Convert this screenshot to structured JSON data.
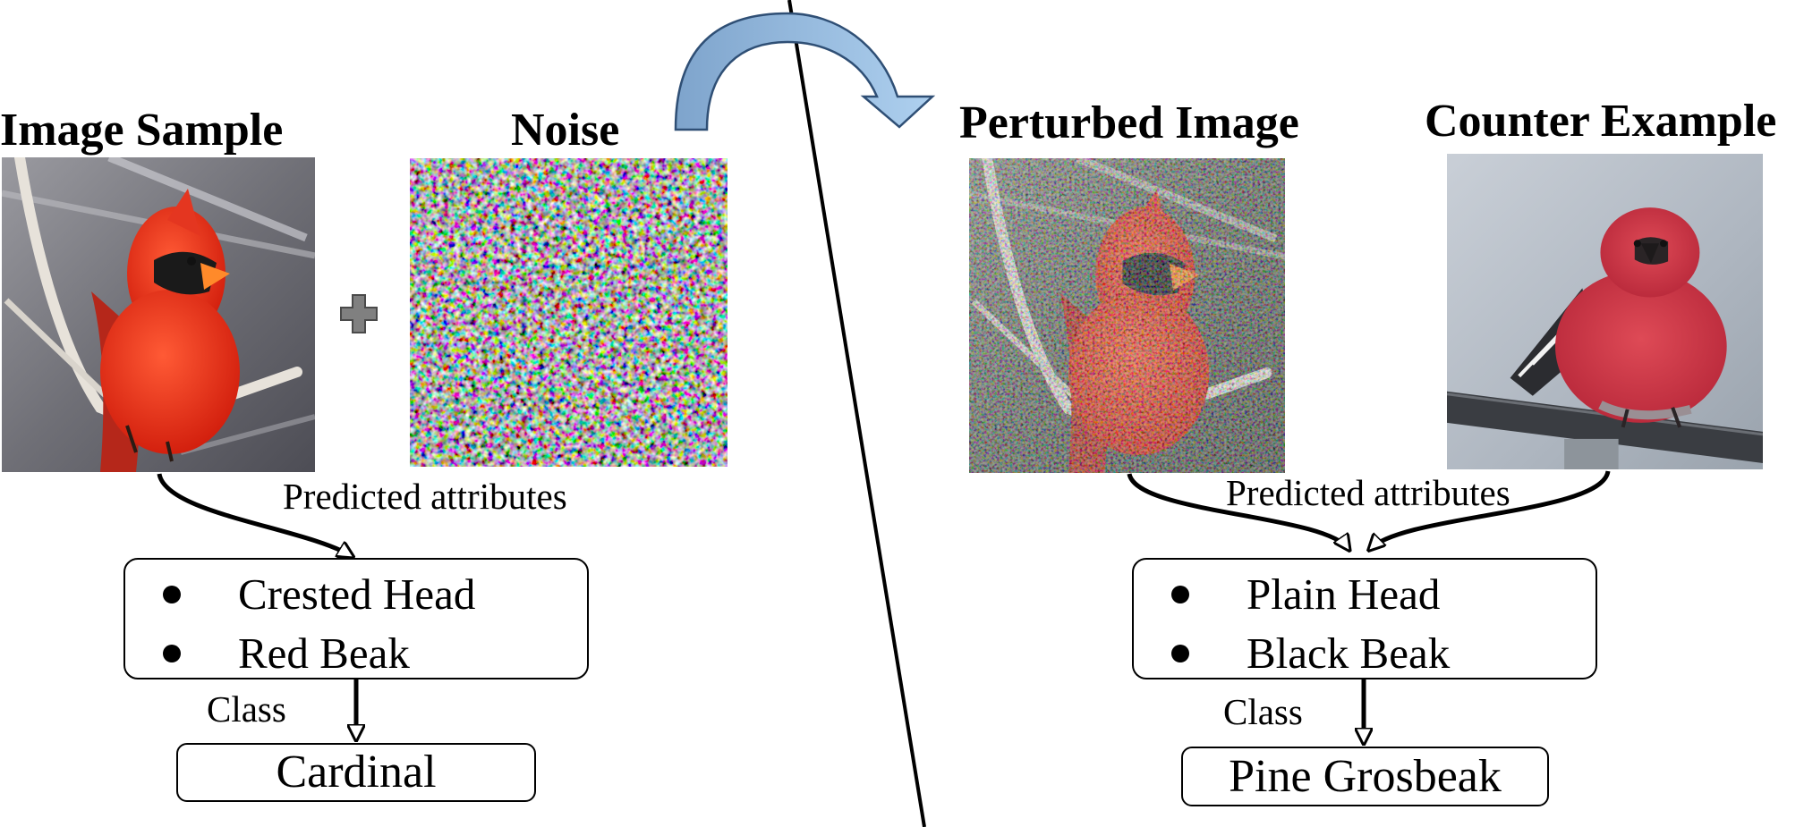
{
  "left": {
    "image_heading": "Image Sample",
    "noise_heading": "Noise",
    "predicted_label": "Predicted attributes",
    "attributes": [
      "Crested Head",
      "Red Beak"
    ],
    "class_label": "Class",
    "class_value": "Cardinal"
  },
  "right": {
    "image_heading": "Perturbed Image",
    "counter_heading": "Counter Example",
    "predicted_label": "Predicted attributes",
    "attributes": [
      "Plain Head",
      "Black Beak"
    ],
    "class_label": "Class",
    "class_value": "Pine Grosbeak"
  },
  "icons": {
    "plus": "plus-icon",
    "transfer": "curved-arrow-icon"
  },
  "colors": {
    "arrow_fill": "#8fb3d9",
    "arrow_stroke": "#2f4f75",
    "plus_fill": "#808080",
    "cardinal_red": "#e8351e",
    "grosbeak_red": "#c8323c"
  }
}
